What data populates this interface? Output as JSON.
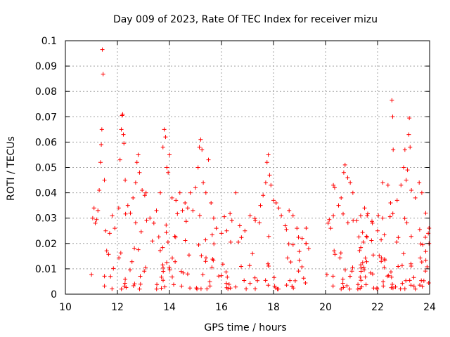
{
  "chart_data": {
    "type": "scatter",
    "title": "Day 009 of 2023, Rate Of TEC Index for receiver mizu",
    "xlabel": "GPS time / hours",
    "ylabel": "ROTI / TECUs",
    "xlim": [
      10,
      24
    ],
    "ylim": [
      0,
      0.1
    ],
    "x_ticks": [
      "10",
      "12",
      "14",
      "16",
      "18",
      "20",
      "22",
      "24"
    ],
    "y_ticks": [
      "0",
      "0.01",
      "0.02",
      "0.03",
      "0.04",
      "0.05",
      "0.06",
      "0.07",
      "0.08",
      "0.09",
      "0.1"
    ],
    "grid": true,
    "marker": "+",
    "color": "#ff0000",
    "series": [
      {
        "name": "ROTI",
        "points": [
          [
            11.05,
            0.03
          ],
          [
            11.1,
            0.034
          ],
          [
            11.15,
            0.028
          ],
          [
            11.25,
            0.033
          ],
          [
            11.3,
            0.041
          ],
          [
            11.35,
            0.052
          ],
          [
            11.38,
            0.059
          ],
          [
            11.4,
            0.065
          ],
          [
            11.42,
            0.0965
          ],
          [
            11.45,
            0.0868
          ],
          [
            11.5,
            0.045
          ],
          [
            11.55,
            0.025
          ],
          [
            11.7,
            0.024
          ],
          [
            11.8,
            0.031
          ],
          [
            11.9,
            0.026
          ],
          [
            12.05,
            0.034
          ],
          [
            12.1,
            0.053
          ],
          [
            12.15,
            0.065
          ],
          [
            12.18,
            0.0705
          ],
          [
            12.2,
            0.071
          ],
          [
            12.23,
            0.063
          ],
          [
            12.25,
            0.0595
          ],
          [
            12.3,
            0.045
          ],
          [
            12.4,
            0.035
          ],
          [
            12.5,
            0.032
          ],
          [
            12.6,
            0.038
          ],
          [
            12.7,
            0.044
          ],
          [
            12.75,
            0.052
          ],
          [
            12.8,
            0.055
          ],
          [
            12.85,
            0.048
          ],
          [
            12.95,
            0.041
          ],
          [
            13.05,
            0.039
          ],
          [
            13.1,
            0.04
          ],
          [
            13.25,
            0.03
          ],
          [
            13.4,
            0.028
          ],
          [
            13.5,
            0.033
          ],
          [
            13.65,
            0.04
          ],
          [
            13.75,
            0.058
          ],
          [
            13.8,
            0.065
          ],
          [
            13.85,
            0.062
          ],
          [
            13.9,
            0.05
          ],
          [
            13.95,
            0.048
          ],
          [
            14.0,
            0.055
          ],
          [
            14.1,
            0.038
          ],
          [
            14.25,
            0.037
          ],
          [
            14.4,
            0.04
          ],
          [
            14.5,
            0.033
          ],
          [
            14.6,
            0.036
          ],
          [
            14.7,
            0.034
          ],
          [
            14.8,
            0.04
          ],
          [
            14.9,
            0.033
          ],
          [
            15.0,
            0.042
          ],
          [
            15.1,
            0.05
          ],
          [
            15.15,
            0.058
          ],
          [
            15.2,
            0.061
          ],
          [
            15.25,
            0.057
          ],
          [
            15.3,
            0.044
          ],
          [
            15.4,
            0.04
          ],
          [
            15.5,
            0.053
          ],
          [
            15.6,
            0.036
          ],
          [
            15.7,
            0.03
          ],
          [
            15.8,
            0.026
          ],
          [
            16.0,
            0.024
          ],
          [
            16.2,
            0.025
          ],
          [
            16.4,
            0.029
          ],
          [
            16.55,
            0.04
          ],
          [
            16.7,
            0.027
          ],
          [
            16.9,
            0.025
          ],
          [
            17.1,
            0.031
          ],
          [
            17.3,
            0.029
          ],
          [
            17.5,
            0.035
          ],
          [
            17.6,
            0.039
          ],
          [
            17.7,
            0.044
          ],
          [
            17.75,
            0.052
          ],
          [
            17.8,
            0.055
          ],
          [
            17.85,
            0.047
          ],
          [
            17.9,
            0.043
          ],
          [
            18.0,
            0.037
          ],
          [
            18.1,
            0.036
          ],
          [
            18.2,
            0.034
          ],
          [
            18.3,
            0.031
          ],
          [
            18.45,
            0.027
          ],
          [
            18.6,
            0.033
          ],
          [
            18.75,
            0.031
          ],
          [
            18.9,
            0.026
          ],
          [
            19.1,
            0.022
          ],
          [
            19.25,
            0.02
          ],
          [
            19.35,
            0.018
          ],
          [
            20.1,
            0.028
          ],
          [
            20.2,
            0.026
          ],
          [
            20.3,
            0.031
          ],
          [
            20.3,
            0.043
          ],
          [
            20.35,
            0.042
          ],
          [
            20.5,
            0.035
          ],
          [
            20.6,
            0.038
          ],
          [
            20.7,
            0.048
          ],
          [
            20.75,
            0.051
          ],
          [
            20.85,
            0.046
          ],
          [
            20.95,
            0.044
          ],
          [
            21.05,
            0.04
          ],
          [
            21.2,
            0.029
          ],
          [
            21.35,
            0.031
          ],
          [
            21.5,
            0.034
          ],
          [
            21.6,
            0.031
          ],
          [
            21.8,
            0.028
          ],
          [
            22.0,
            0.025
          ],
          [
            22.2,
            0.03
          ],
          [
            22.2,
            0.044
          ],
          [
            22.4,
            0.043
          ],
          [
            22.5,
            0.036
          ],
          [
            22.55,
            0.0765
          ],
          [
            22.58,
            0.07
          ],
          [
            22.6,
            0.057
          ],
          [
            22.75,
            0.037
          ],
          [
            22.9,
            0.043
          ],
          [
            23.0,
            0.05
          ],
          [
            23.05,
            0.057
          ],
          [
            23.1,
            0.045
          ],
          [
            23.15,
            0.049
          ],
          [
            23.2,
            0.063
          ],
          [
            23.22,
            0.0695
          ],
          [
            23.25,
            0.058
          ],
          [
            23.3,
            0.041
          ],
          [
            23.45,
            0.038
          ],
          [
            23.6,
            0.044
          ],
          [
            23.7,
            0.04
          ],
          [
            23.85,
            0.032
          ],
          [
            23.95,
            0.024
          ]
        ]
      }
    ]
  }
}
